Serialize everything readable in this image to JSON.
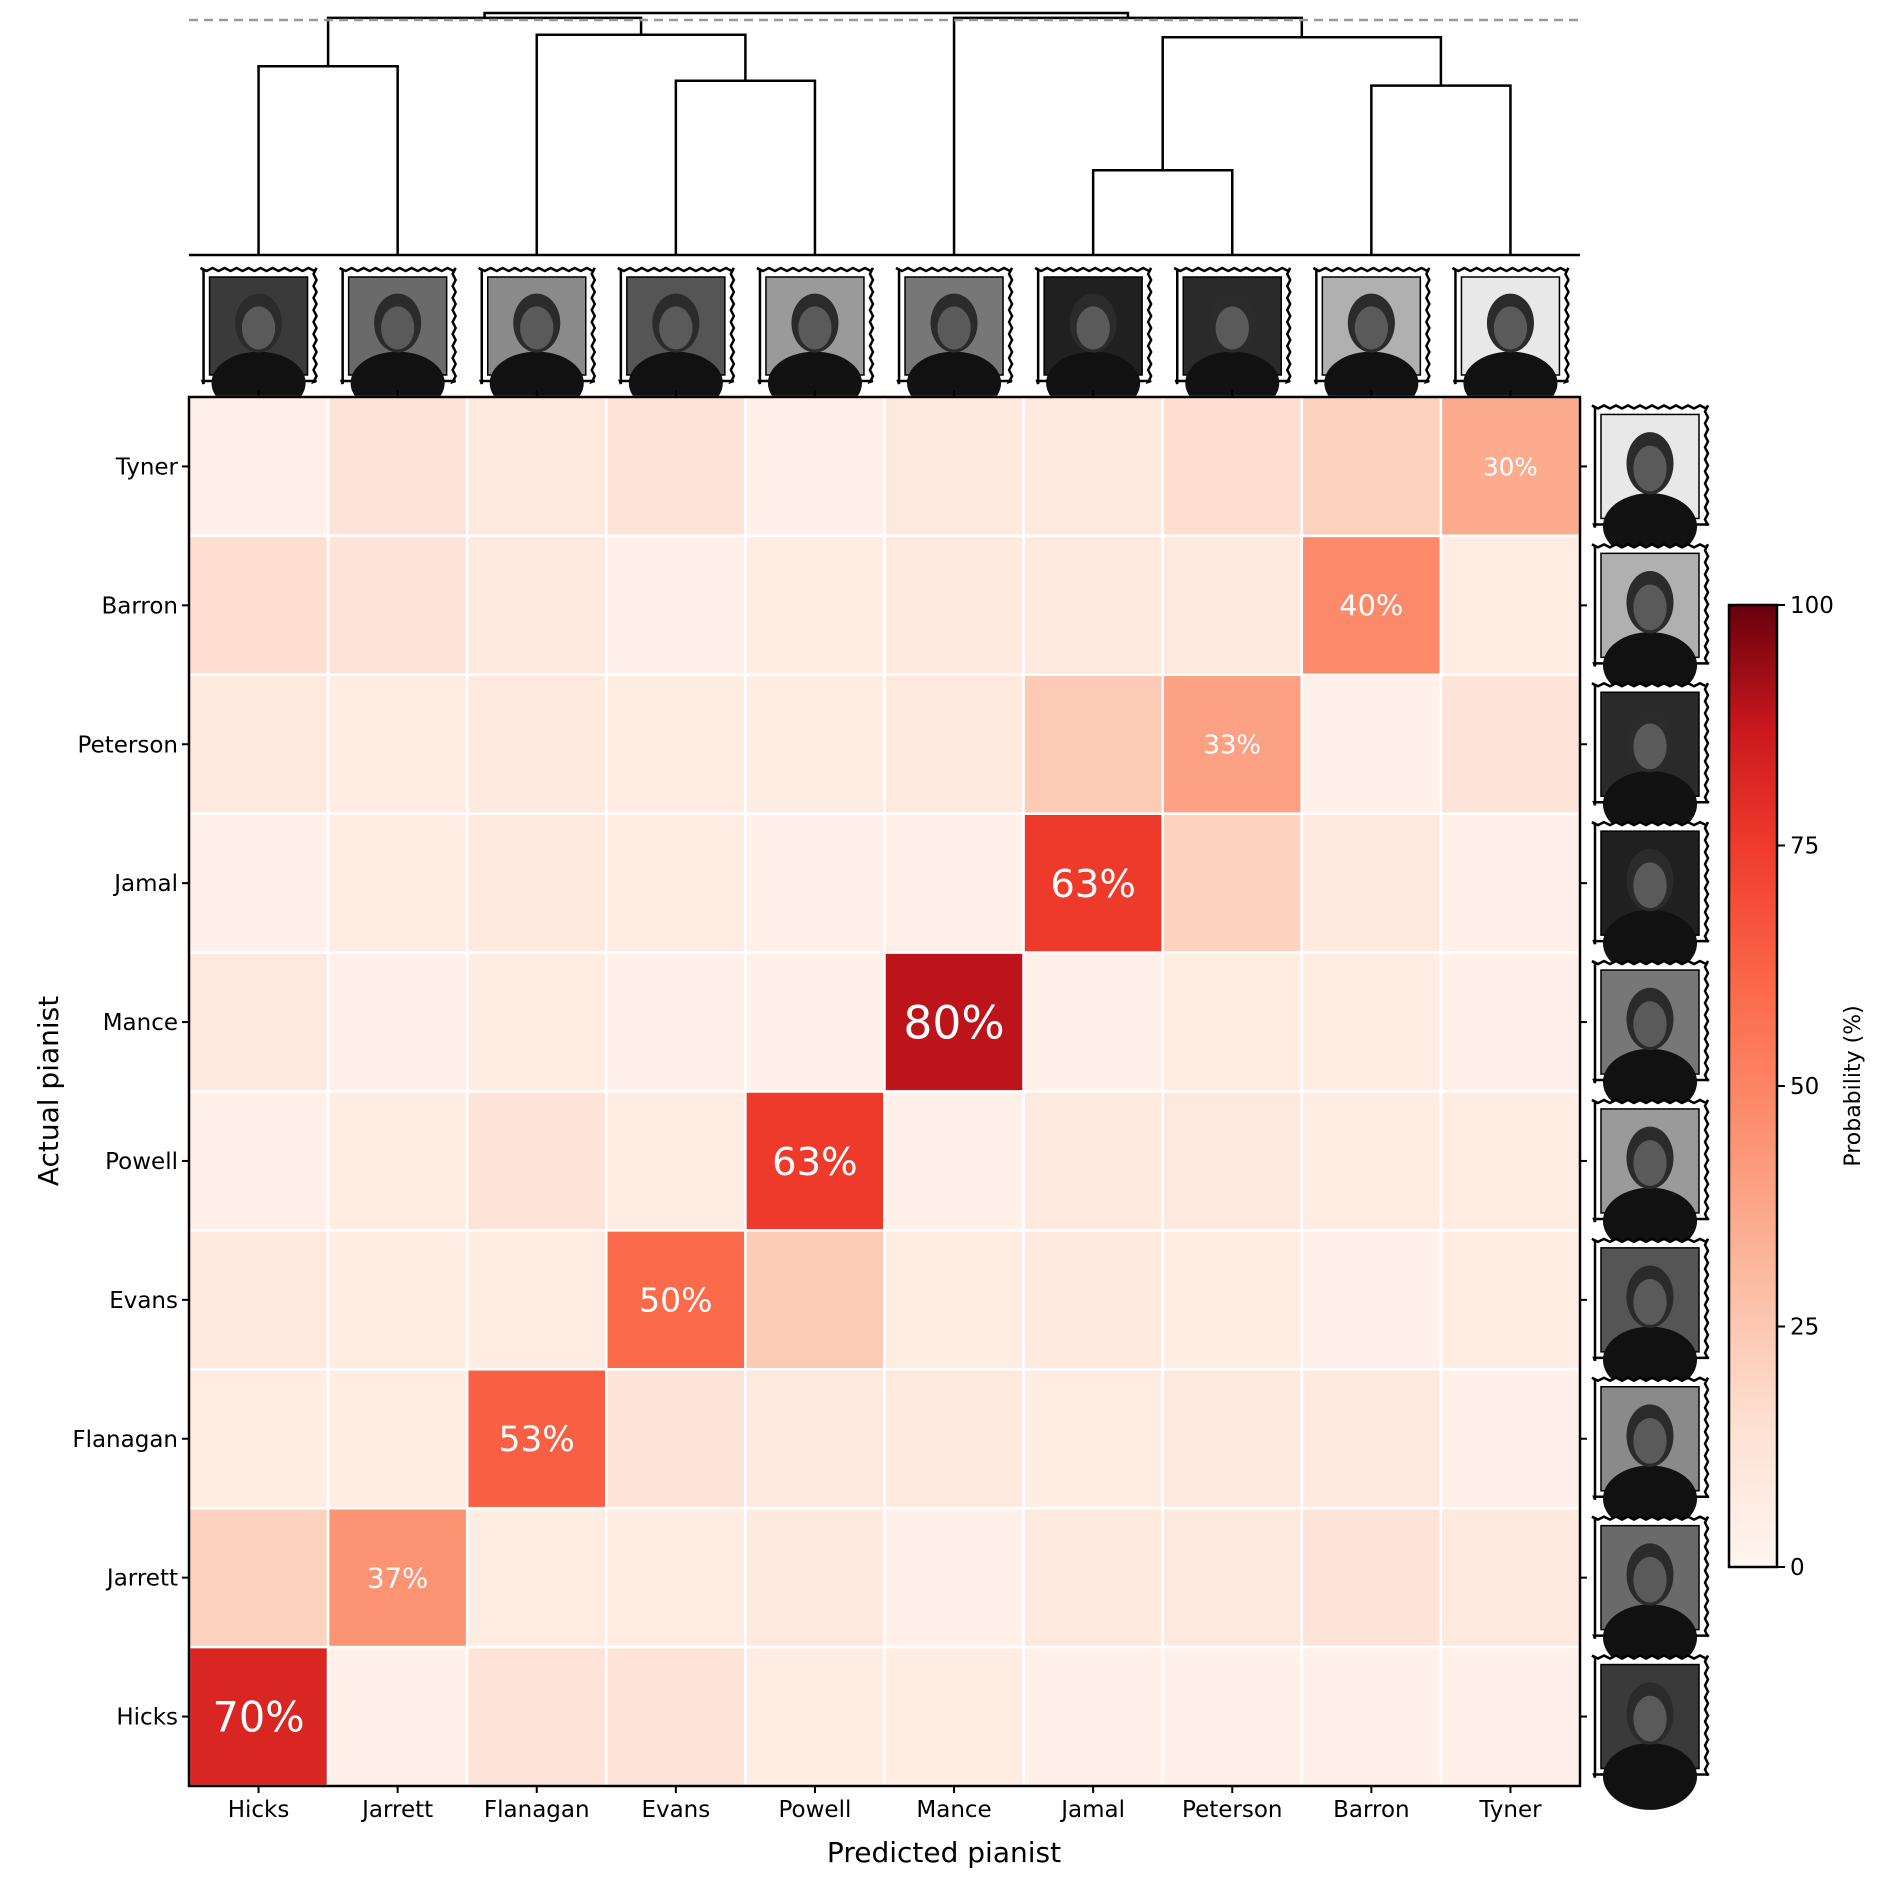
{
  "chart_data": {
    "type": "heatmap",
    "xlabel": "Predicted pianist",
    "ylabel": "Actual pianist",
    "x_categories": [
      "Hicks",
      "Jarrett",
      "Flanagan",
      "Evans",
      "Powell",
      "Mance",
      "Jamal",
      "Peterson",
      "Barron",
      "Tyner"
    ],
    "y_categories": [
      "Tyner",
      "Barron",
      "Peterson",
      "Jamal",
      "Mance",
      "Powell",
      "Evans",
      "Flanagan",
      "Jarrett",
      "Hicks"
    ],
    "values": [
      [
        3,
        10,
        7,
        10,
        3,
        7,
        7,
        13,
        17,
        30
      ],
      [
        13,
        10,
        7,
        3,
        5,
        7,
        7,
        7,
        40,
        5
      ],
      [
        7,
        5,
        7,
        5,
        5,
        7,
        20,
        33,
        3,
        10
      ],
      [
        3,
        5,
        7,
        5,
        3,
        3,
        63,
        17,
        7,
        3
      ],
      [
        7,
        3,
        5,
        3,
        3,
        80,
        3,
        5,
        5,
        3
      ],
      [
        3,
        5,
        10,
        5,
        63,
        3,
        7,
        7,
        5,
        5
      ],
      [
        7,
        5,
        5,
        50,
        20,
        5,
        7,
        5,
        3,
        5
      ],
      [
        5,
        5,
        53,
        10,
        7,
        7,
        5,
        7,
        7,
        3
      ],
      [
        17,
        37,
        5,
        5,
        7,
        3,
        7,
        7,
        10,
        7
      ],
      [
        70,
        3,
        10,
        10,
        5,
        5,
        3,
        3,
        3,
        3
      ]
    ],
    "annotations": [
      {
        "row": "Tyner",
        "col": "Tyner",
        "label": "30%"
      },
      {
        "row": "Barron",
        "col": "Barron",
        "label": "40%"
      },
      {
        "row": "Peterson",
        "col": "Peterson",
        "label": "33%"
      },
      {
        "row": "Jamal",
        "col": "Jamal",
        "label": "63%"
      },
      {
        "row": "Mance",
        "col": "Mance",
        "label": "80%"
      },
      {
        "row": "Powell",
        "col": "Powell",
        "label": "63%"
      },
      {
        "row": "Evans",
        "col": "Evans",
        "label": "50%"
      },
      {
        "row": "Flanagan",
        "col": "Flanagan",
        "label": "53%"
      },
      {
        "row": "Jarrett",
        "col": "Jarrett",
        "label": "37%"
      },
      {
        "row": "Hicks",
        "col": "Hicks",
        "label": "70%"
      }
    ],
    "colorbar": {
      "label": "Probability (%)",
      "range": [
        0,
        100
      ],
      "ticks": [
        0,
        25,
        50,
        75,
        100
      ],
      "colormap": "Reds",
      "color_low": "#fff5f0",
      "color_high": "#67000d"
    },
    "dendrogram": {
      "position": "top",
      "merges": [
        {
          "left": "Jamal",
          "right": "Peterson",
          "height": 0.35
        },
        {
          "left": "Hicks",
          "right": "Jarrett",
          "height": 0.78
        },
        {
          "left": "Evans",
          "right": "Powell",
          "height": 0.72
        },
        {
          "left": "Barron",
          "right": "Tyner",
          "height": 0.7
        },
        {
          "left": "Jamal+Peterson",
          "right": "Barron+Tyner",
          "height": 0.9
        },
        {
          "left": "Flanagan",
          "right": "Evans+Powell",
          "height": 0.91
        },
        {
          "left": "Mance",
          "right": "Jamal+Peterson+Barron+Tyner",
          "height": 0.98
        },
        {
          "left": "Hicks+Jarrett",
          "right": "Flanagan+Evans+Powell",
          "height": 0.98
        },
        {
          "left": "all_left",
          "right": "all_right",
          "height": 1.0
        }
      ],
      "threshold_line": "dashed"
    },
    "portraits": "photo thumbnails of each pianist along top and right axes"
  }
}
